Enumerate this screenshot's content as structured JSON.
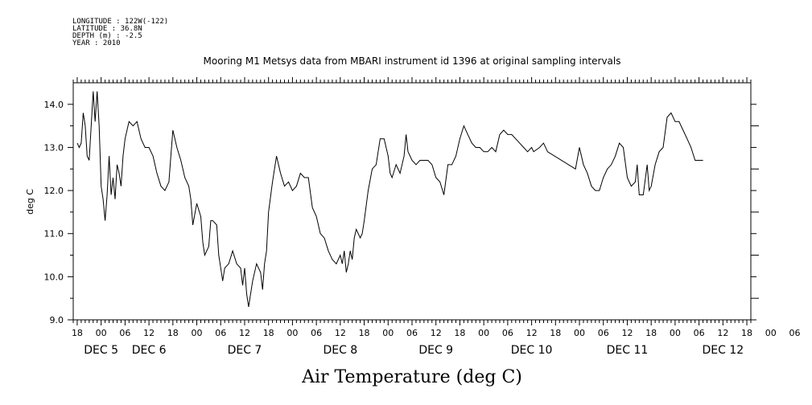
{
  "metadata": {
    "longitude": "LONGITUDE : 122W(-122)",
    "latitude": "LATITUDE : 36.8N",
    "depth": "DEPTH (m) : -2.5",
    "year": "YEAR : 2010"
  },
  "chart_data": {
    "type": "line",
    "title": "Mooring M1 Metsys data from MBARI instrument id 1396 at original sampling intervals",
    "xlabel": "Air Temperature (deg C)",
    "ylabel": "deg C",
    "ylim": [
      9.0,
      14.5
    ],
    "xlim_hours": [
      -7,
      163
    ],
    "yticks": [
      "9.0",
      "10.0",
      "11.0",
      "12.0",
      "13.0",
      "14.0"
    ],
    "xtick_hour_labels": [
      "18",
      "00",
      "06",
      "12",
      "18",
      "00",
      "06",
      "12",
      "18",
      "00",
      "06",
      "12",
      "18",
      "00",
      "06",
      "12",
      "18",
      "00",
      "06",
      "12",
      "18",
      "00",
      "06",
      "12",
      "18",
      "00",
      "06",
      "12",
      "18",
      "00",
      "06",
      "12",
      "18"
    ],
    "day_labels": [
      {
        "label": "DEC  5",
        "hour": 0
      },
      {
        "label": "DEC  6",
        "hour": 12
      },
      {
        "label": "DEC  7",
        "hour": 36
      },
      {
        "label": "DEC  8",
        "hour": 60
      },
      {
        "label": "DEC  9",
        "hour": 84
      },
      {
        "label": "DEC 10",
        "hour": 108
      },
      {
        "label": "DEC 11",
        "hour": 132
      },
      {
        "label": "DEC 12",
        "hour": 156
      }
    ],
    "grid": false,
    "series": [
      {
        "points": [
          [
            -6,
            13.1
          ],
          [
            -5.5,
            13.0
          ],
          [
            -5,
            13.1
          ],
          [
            -4.5,
            13.8
          ],
          [
            -4,
            13.5
          ],
          [
            -3.5,
            12.8
          ],
          [
            -3,
            12.7
          ],
          [
            -2.5,
            13.5
          ],
          [
            -2,
            14.3
          ],
          [
            -1.5,
            13.6
          ],
          [
            -1,
            14.3
          ],
          [
            -0.5,
            13.5
          ],
          [
            0,
            12.1
          ],
          [
            0.5,
            11.8
          ],
          [
            1,
            11.3
          ],
          [
            1.5,
            11.9
          ],
          [
            2,
            12.8
          ],
          [
            2.5,
            11.9
          ],
          [
            3,
            12.3
          ],
          [
            3.5,
            11.8
          ],
          [
            4,
            12.6
          ],
          [
            4.5,
            12.4
          ],
          [
            5,
            12.1
          ],
          [
            5.5,
            12.8
          ],
          [
            6,
            13.2
          ],
          [
            7,
            13.6
          ],
          [
            8,
            13.5
          ],
          [
            9,
            13.6
          ],
          [
            10,
            13.2
          ],
          [
            11,
            13.0
          ],
          [
            12,
            13.0
          ],
          [
            13,
            12.8
          ],
          [
            14,
            12.4
          ],
          [
            15,
            12.1
          ],
          [
            16,
            12.0
          ],
          [
            17,
            12.2
          ],
          [
            17.5,
            12.8
          ],
          [
            18,
            13.4
          ],
          [
            19,
            13.0
          ],
          [
            20,
            12.7
          ],
          [
            21,
            12.3
          ],
          [
            22,
            12.1
          ],
          [
            22.5,
            11.8
          ],
          [
            23,
            11.2
          ],
          [
            24,
            11.7
          ],
          [
            25,
            11.4
          ],
          [
            25.5,
            10.8
          ],
          [
            26,
            10.5
          ],
          [
            27,
            10.7
          ],
          [
            27.5,
            11.3
          ],
          [
            28,
            11.3
          ],
          [
            29,
            11.2
          ],
          [
            29.5,
            10.5
          ],
          [
            30,
            10.2
          ],
          [
            30.5,
            9.9
          ],
          [
            31,
            10.2
          ],
          [
            32,
            10.3
          ],
          [
            33,
            10.6
          ],
          [
            34,
            10.3
          ],
          [
            35,
            10.2
          ],
          [
            35.5,
            9.8
          ],
          [
            36,
            10.2
          ],
          [
            36.5,
            9.6
          ],
          [
            37,
            9.3
          ],
          [
            38,
            9.9
          ],
          [
            39,
            10.3
          ],
          [
            40,
            10.1
          ],
          [
            40.5,
            9.7
          ],
          [
            41,
            10.3
          ],
          [
            41.5,
            10.6
          ],
          [
            42,
            11.5
          ],
          [
            43,
            12.2
          ],
          [
            44,
            12.8
          ],
          [
            45,
            12.4
          ],
          [
            46,
            12.1
          ],
          [
            47,
            12.2
          ],
          [
            48,
            12.0
          ],
          [
            49,
            12.1
          ],
          [
            50,
            12.4
          ],
          [
            51,
            12.3
          ],
          [
            52,
            12.3
          ],
          [
            53,
            11.6
          ],
          [
            54,
            11.4
          ],
          [
            55,
            11.0
          ],
          [
            56,
            10.9
          ],
          [
            57,
            10.6
          ],
          [
            58,
            10.4
          ],
          [
            59,
            10.3
          ],
          [
            60,
            10.5
          ],
          [
            60.5,
            10.3
          ],
          [
            61,
            10.6
          ],
          [
            61.5,
            10.1
          ],
          [
            62,
            10.3
          ],
          [
            62.5,
            10.6
          ],
          [
            63,
            10.4
          ],
          [
            63.5,
            10.9
          ],
          [
            64,
            11.1
          ],
          [
            65,
            10.9
          ],
          [
            65.5,
            11.0
          ],
          [
            66,
            11.3
          ],
          [
            67,
            12.0
          ],
          [
            68,
            12.5
          ],
          [
            69,
            12.6
          ],
          [
            70,
            13.2
          ],
          [
            71,
            13.2
          ],
          [
            72,
            12.8
          ],
          [
            72.5,
            12.4
          ],
          [
            73,
            12.3
          ],
          [
            74,
            12.6
          ],
          [
            75,
            12.4
          ],
          [
            76,
            12.8
          ],
          [
            76.5,
            13.3
          ],
          [
            77,
            12.9
          ],
          [
            78,
            12.7
          ],
          [
            79,
            12.6
          ],
          [
            80,
            12.7
          ],
          [
            81,
            12.7
          ],
          [
            82,
            12.7
          ],
          [
            83,
            12.6
          ],
          [
            84,
            12.3
          ],
          [
            85,
            12.2
          ],
          [
            86,
            11.9
          ],
          [
            87,
            12.6
          ],
          [
            88,
            12.6
          ],
          [
            89,
            12.8
          ],
          [
            90,
            13.2
          ],
          [
            91,
            13.5
          ],
          [
            92,
            13.3
          ],
          [
            93,
            13.1
          ],
          [
            94,
            13.0
          ],
          [
            95,
            13.0
          ],
          [
            96,
            12.9
          ],
          [
            97,
            12.9
          ],
          [
            98,
            13.0
          ],
          [
            99,
            12.9
          ],
          [
            100,
            13.3
          ],
          [
            101,
            13.4
          ],
          [
            102,
            13.3
          ],
          [
            103,
            13.3
          ],
          [
            104,
            13.2
          ],
          [
            105,
            13.1
          ],
          [
            106,
            13.0
          ],
          [
            107,
            12.9
          ],
          [
            108,
            13.0
          ],
          [
            108.5,
            12.9
          ],
          [
            110,
            13.0
          ],
          [
            111,
            13.1
          ],
          [
            112,
            12.9
          ],
          [
            119,
            12.5
          ],
          [
            120,
            13.0
          ],
          [
            121,
            12.6
          ],
          [
            122,
            12.4
          ],
          [
            123,
            12.1
          ],
          [
            124,
            12.0
          ],
          [
            125,
            12.0
          ],
          [
            126,
            12.3
          ],
          [
            127,
            12.5
          ],
          [
            128,
            12.6
          ],
          [
            129,
            12.8
          ],
          [
            130,
            13.1
          ],
          [
            131,
            13.0
          ],
          [
            132,
            12.3
          ],
          [
            133,
            12.1
          ],
          [
            134,
            12.2
          ],
          [
            134.5,
            12.6
          ],
          [
            135,
            11.9
          ],
          [
            136,
            11.9
          ],
          [
            137,
            12.6
          ],
          [
            137.5,
            12.0
          ],
          [
            138,
            12.1
          ],
          [
            139,
            12.6
          ],
          [
            140,
            12.9
          ],
          [
            141,
            13.0
          ],
          [
            142,
            13.7
          ],
          [
            143,
            13.8
          ],
          [
            144,
            13.6
          ],
          [
            145,
            13.6
          ],
          [
            146,
            13.4
          ],
          [
            147,
            13.2
          ],
          [
            148,
            13.0
          ],
          [
            149,
            12.7
          ],
          [
            150,
            12.7
          ],
          [
            151,
            12.7
          ]
        ]
      }
    ]
  }
}
